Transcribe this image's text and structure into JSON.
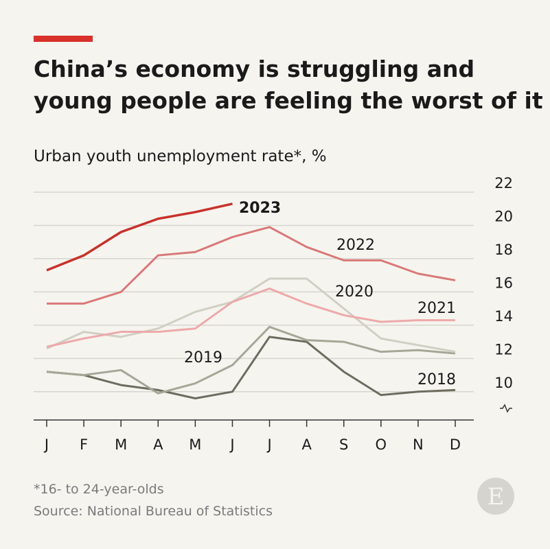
{
  "chart_data": {
    "type": "line",
    "title": "China’s economy is struggling and young people are feeling the worst of it",
    "subtitle": "Urban youth unemployment rate*, %",
    "footnote": "*16- to 24-year-olds",
    "source": "Source: National Bureau of Statistics",
    "logo": "E",
    "categories": [
      "J",
      "F",
      "M",
      "A",
      "M",
      "J",
      "J",
      "A",
      "S",
      "O",
      "N",
      "D"
    ],
    "ylim": [
      8.3,
      22
    ],
    "yticks": [
      10,
      12,
      14,
      16,
      18,
      20,
      22
    ],
    "grid": true,
    "series": [
      {
        "name": "2018",
        "color": "#6c6c5f",
        "values": [
          11.2,
          11.0,
          10.4,
          10.1,
          9.6,
          10.0,
          13.3,
          13.0,
          11.2,
          9.8,
          10.0,
          10.1
        ]
      },
      {
        "name": "2019",
        "color": "#a5a797",
        "values": [
          11.2,
          11.0,
          11.3,
          9.9,
          10.5,
          11.6,
          13.9,
          13.1,
          13.0,
          12.4,
          12.5,
          12.3
        ]
      },
      {
        "name": "2020",
        "color": "#cfcfc3",
        "values": [
          12.6,
          13.6,
          13.3,
          13.8,
          14.8,
          15.4,
          16.8,
          16.8,
          15.0,
          13.2,
          12.8,
          12.4
        ]
      },
      {
        "name": "2021",
        "color": "#eda9aa",
        "values": [
          12.7,
          13.2,
          13.6,
          13.6,
          13.8,
          15.4,
          16.2,
          15.3,
          14.6,
          14.2,
          14.3,
          14.3
        ]
      },
      {
        "name": "2022",
        "color": "#d97878",
        "values": [
          15.3,
          15.3,
          16.0,
          18.2,
          18.4,
          19.3,
          19.9,
          18.7,
          17.9,
          17.9,
          17.1,
          16.7
        ]
      },
      {
        "name": "2023",
        "color": "#c8312b",
        "values": [
          17.3,
          18.2,
          19.6,
          20.4,
          20.8,
          21.3,
          null,
          null,
          null,
          null,
          null,
          null
        ]
      }
    ]
  }
}
